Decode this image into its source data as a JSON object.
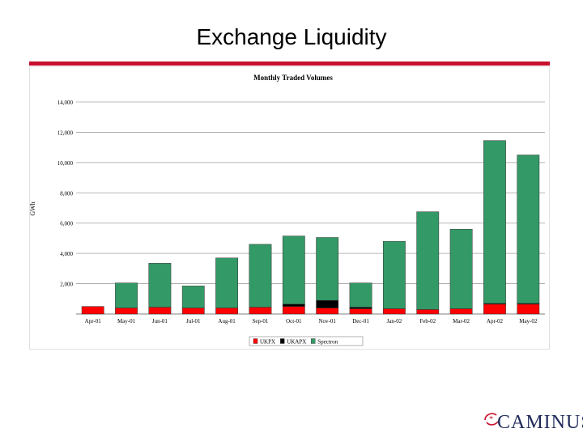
{
  "slide": {
    "title": "Exchange Liquidity"
  },
  "logo": {
    "text": "CAMINUS",
    "mark_color": "#c8102e",
    "text_color": "#1f2a5a"
  },
  "colors": {
    "accent_rule": "#c8102e",
    "UKPX": "#ff0000",
    "UKAPX": "#000000",
    "Spectron": "#339966"
  },
  "chart_data": {
    "type": "bar",
    "stacked": true,
    "title": "Monthly  Traded Volumes",
    "xlabel": "",
    "ylabel": "GWh",
    "ylim": [
      0,
      14000
    ],
    "yticks": [
      "14,000",
      "12,000",
      "10,000",
      "8,000",
      "6,000",
      "4,000",
      "2,000"
    ],
    "grid": true,
    "legend_position": "bottom",
    "categories": [
      "Apr-01",
      "May-01",
      "Jun-01",
      "Jul-01",
      "Aug-01",
      "Sep-01",
      "Oct-01",
      "Nov-01",
      "Dec-01",
      "Jan-02",
      "Feb-02",
      "Mar-02",
      "Apr-02",
      "May-02"
    ],
    "series": [
      {
        "name": "UKPX",
        "color": "#ff0000",
        "values": [
          500,
          400,
          450,
          400,
          400,
          450,
          500,
          400,
          350,
          350,
          300,
          350,
          650,
          650
        ]
      },
      {
        "name": "UKAPX",
        "color": "#000000",
        "values": [
          0,
          0,
          0,
          0,
          0,
          0,
          150,
          500,
          100,
          0,
          0,
          0,
          50,
          50
        ]
      },
      {
        "name": "Spectron",
        "color": "#339966",
        "values": [
          0,
          1650,
          2900,
          1450,
          3300,
          4150,
          4500,
          4150,
          1600,
          4450,
          6450,
          5250,
          10750,
          9800
        ]
      }
    ]
  }
}
